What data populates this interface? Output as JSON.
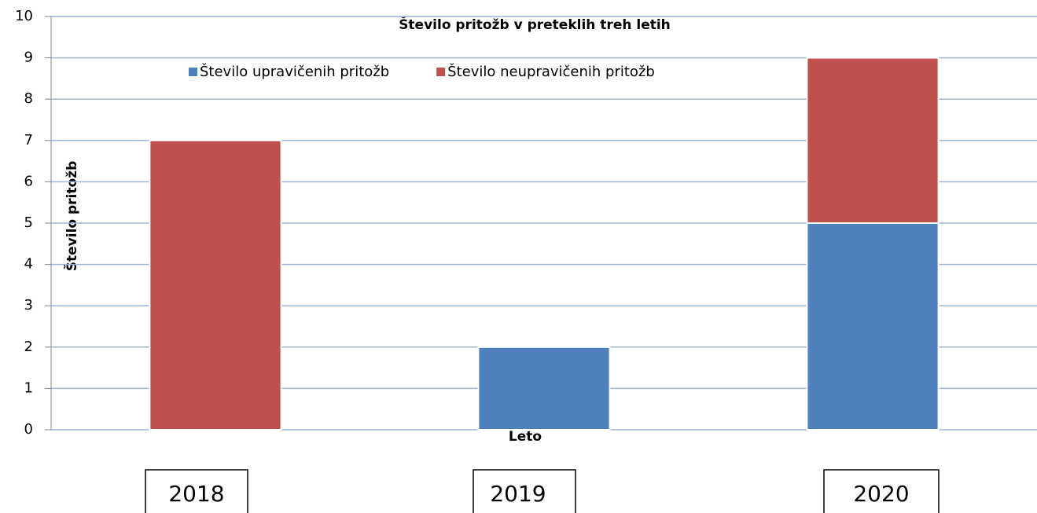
{
  "chart_data": {
    "type": "stacked_bar",
    "title": "Število pritožb v preteklih treh letih",
    "x_label": "Leto",
    "y_label": "Število pritožb",
    "categories": [
      "2018",
      "2019",
      "2020"
    ],
    "series": [
      {
        "name": "Število upravičenih pritožb",
        "color": "#4f81bd",
        "values": [
          0,
          2,
          5
        ]
      },
      {
        "name": "Število neupravičenih pritožb",
        "color": "#c0504d",
        "values": [
          7,
          0,
          4
        ]
      }
    ],
    "ylim": [
      0,
      10
    ],
    "yticks": [
      0,
      1,
      2,
      3,
      4,
      5,
      6,
      7,
      8,
      9,
      10
    ],
    "grid": true
  }
}
